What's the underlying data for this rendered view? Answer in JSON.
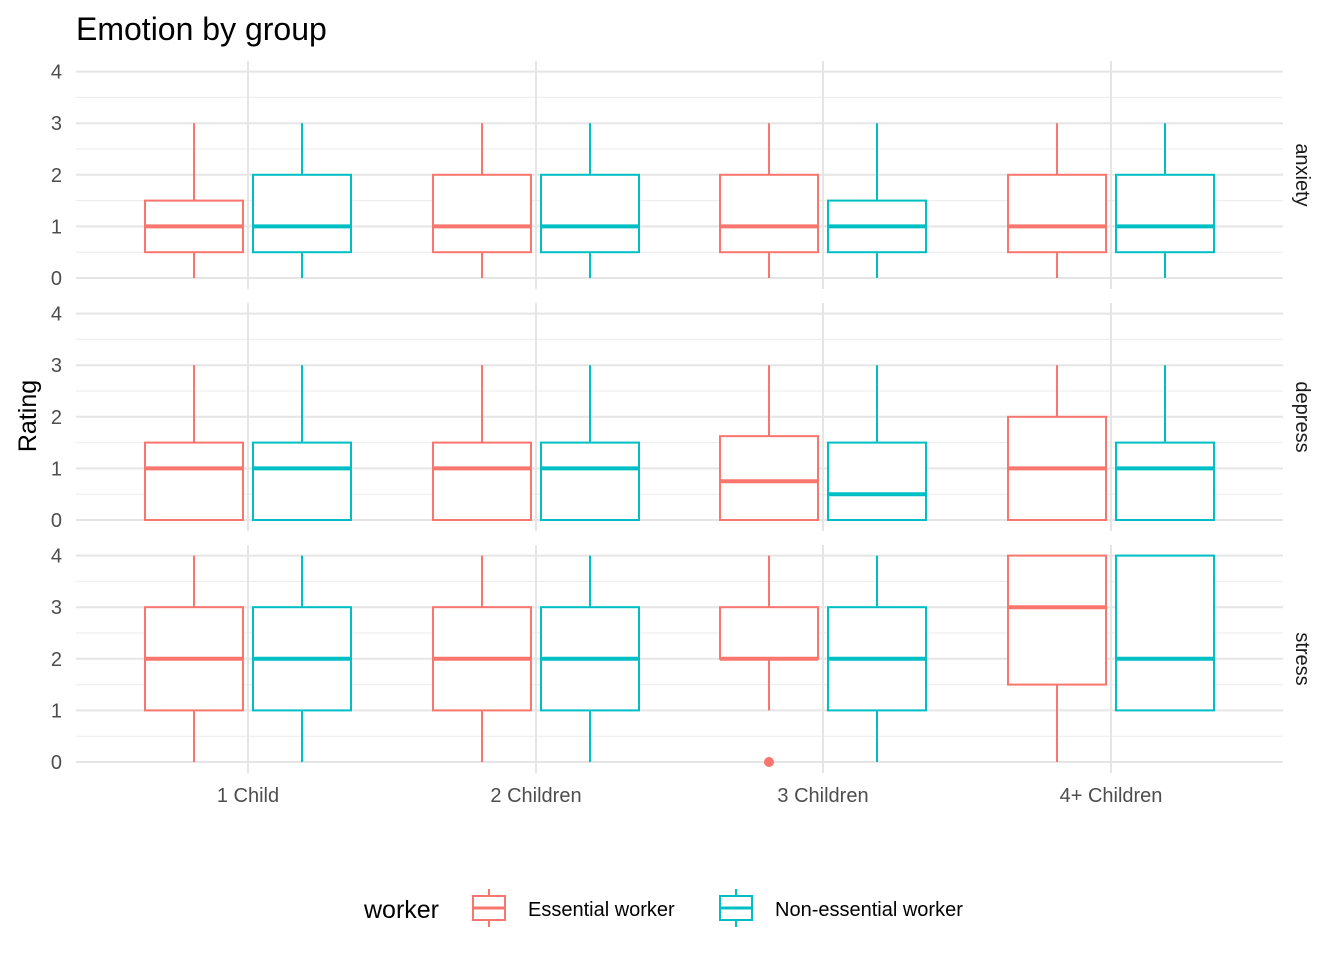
{
  "chart_data": {
    "type": "boxplot",
    "title": "Emotion by group",
    "xlabel": "",
    "ylabel": "Rating",
    "categories": [
      "1 Child",
      "2 Children",
      "3 Children",
      "4+ Children"
    ],
    "facets": [
      "anxiety",
      "depress",
      "stress"
    ],
    "ylim": [
      0,
      4
    ],
    "y_ticks": [
      0,
      1,
      2,
      3,
      4
    ],
    "grid": true,
    "legend": {
      "title": "worker",
      "position": "bottom",
      "entries": [
        "Essential worker",
        "Non-essential worker"
      ]
    },
    "colors": {
      "Essential worker": "#F8766D",
      "Non-essential worker": "#00BFC4"
    },
    "series": [
      {
        "name": "Essential worker",
        "facets": {
          "anxiety": [
            {
              "low": 0,
              "q1": 0.5,
              "median": 1,
              "q3": 1.5,
              "high": 3
            },
            {
              "low": 0,
              "q1": 0.5,
              "median": 1,
              "q3": 2,
              "high": 3
            },
            {
              "low": 0,
              "q1": 0.5,
              "median": 1,
              "q3": 2,
              "high": 3
            },
            {
              "low": 0,
              "q1": 0.5,
              "median": 1,
              "q3": 2,
              "high": 3
            }
          ],
          "depress": [
            {
              "low": 0,
              "q1": 0,
              "median": 1,
              "q3": 1.5,
              "high": 3
            },
            {
              "low": 0,
              "q1": 0,
              "median": 1,
              "q3": 1.5,
              "high": 3
            },
            {
              "low": 0,
              "q1": 0,
              "median": 0.75,
              "q3": 1.625,
              "high": 3
            },
            {
              "low": 0,
              "q1": 0,
              "median": 1,
              "q3": 2,
              "high": 3
            }
          ],
          "stress": [
            {
              "low": 0,
              "q1": 1,
              "median": 2,
              "q3": 3,
              "high": 4
            },
            {
              "low": 0,
              "q1": 1,
              "median": 2,
              "q3": 3,
              "high": 4
            },
            {
              "low": 1,
              "q1": 2,
              "median": 2,
              "q3": 3,
              "high": 4,
              "outliers": [
                0
              ]
            },
            {
              "low": 0,
              "q1": 1.5,
              "median": 3,
              "q3": 4,
              "high": 4
            }
          ]
        }
      },
      {
        "name": "Non-essential worker",
        "facets": {
          "anxiety": [
            {
              "low": 0,
              "q1": 0.5,
              "median": 1,
              "q3": 2,
              "high": 3
            },
            {
              "low": 0,
              "q1": 0.5,
              "median": 1,
              "q3": 2,
              "high": 3
            },
            {
              "low": 0,
              "q1": 0.5,
              "median": 1,
              "q3": 1.5,
              "high": 3
            },
            {
              "low": 0,
              "q1": 0.5,
              "median": 1,
              "q3": 2,
              "high": 3
            }
          ],
          "depress": [
            {
              "low": 0,
              "q1": 0,
              "median": 1,
              "q3": 1.5,
              "high": 3
            },
            {
              "low": 0,
              "q1": 0,
              "median": 1,
              "q3": 1.5,
              "high": 3
            },
            {
              "low": 0,
              "q1": 0,
              "median": 0.5,
              "q3": 1.5,
              "high": 3
            },
            {
              "low": 0,
              "q1": 0,
              "median": 1,
              "q3": 1.5,
              "high": 3
            }
          ],
          "stress": [
            {
              "low": 0,
              "q1": 1,
              "median": 2,
              "q3": 3,
              "high": 4
            },
            {
              "low": 0,
              "q1": 1,
              "median": 2,
              "q3": 3,
              "high": 4
            },
            {
              "low": 0,
              "q1": 1,
              "median": 2,
              "q3": 3,
              "high": 4
            },
            {
              "low": 1,
              "q1": 1,
              "median": 2,
              "q3": 4,
              "high": 4
            }
          ]
        }
      }
    ]
  }
}
